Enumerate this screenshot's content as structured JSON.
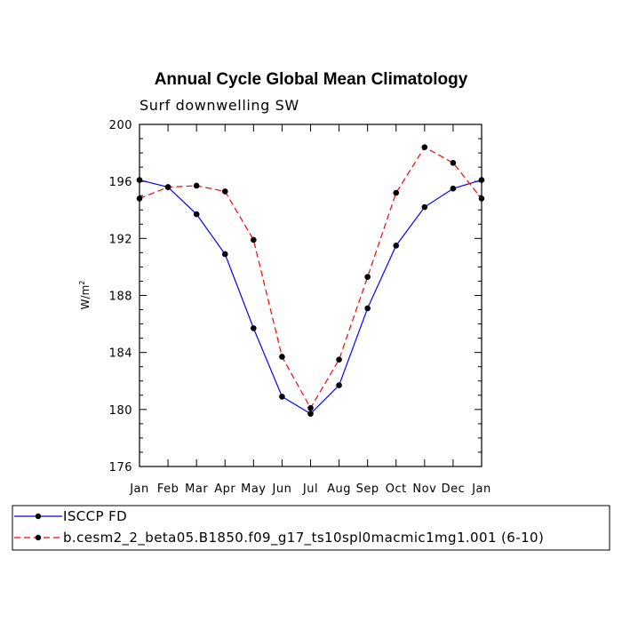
{
  "chart_data": {
    "type": "line",
    "title": "Annual Cycle Global Mean Climatology",
    "subtitle": "Surf downwelling SW",
    "xlabel": "",
    "ylabel": "W/m",
    "ylabel_sup": "2",
    "ylim": [
      176,
      200
    ],
    "yticks": [
      176,
      180,
      184,
      188,
      192,
      196,
      200
    ],
    "categories": [
      "Jan",
      "Feb",
      "Mar",
      "Apr",
      "May",
      "Jun",
      "Jul",
      "Aug",
      "Sep",
      "Oct",
      "Nov",
      "Dec",
      "Jan"
    ],
    "series": [
      {
        "name": "ISCCP FD",
        "color": "#0000ff",
        "style": "solid",
        "values": [
          196.1,
          195.6,
          193.7,
          190.9,
          185.7,
          180.9,
          179.7,
          181.7,
          187.1,
          191.5,
          194.2,
          195.5,
          196.1
        ]
      },
      {
        "name": "b.cesm2_2_beta05.B1850.f09_g17_ts10spl0macmic1mg1.001 (6-10)",
        "color": "#ff0000",
        "style": "dashed",
        "values": [
          194.8,
          195.6,
          195.7,
          195.3,
          191.9,
          183.7,
          180.1,
          183.5,
          189.3,
          195.2,
          198.4,
          197.3,
          194.8
        ]
      }
    ],
    "legend_position": "bottom"
  }
}
